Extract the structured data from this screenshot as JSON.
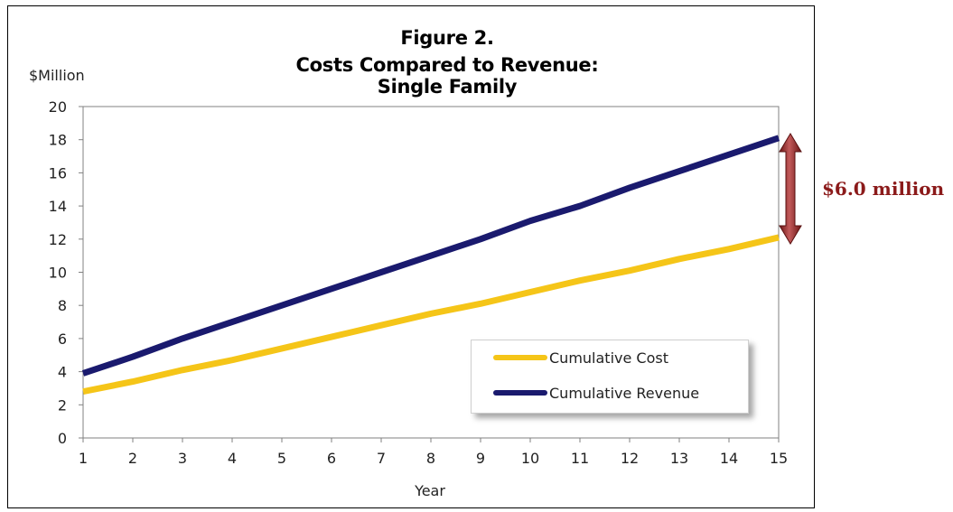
{
  "chart_data": {
    "type": "line",
    "title": "Figure 2.",
    "subtitle": "Costs Compared to Revenue: Single Family",
    "xlabel": "Year",
    "ylabel": "$Million",
    "x": [
      1,
      2,
      3,
      4,
      5,
      6,
      7,
      8,
      9,
      10,
      11,
      12,
      13,
      14,
      15
    ],
    "xlim": [
      1,
      15
    ],
    "ylim": [
      0,
      20
    ],
    "yticks": [
      0,
      2,
      4,
      6,
      8,
      10,
      12,
      14,
      16,
      18,
      20
    ],
    "series": [
      {
        "name": "Cumulative Cost",
        "color": "#f5c518",
        "values": [
          2.8,
          3.4,
          4.1,
          4.7,
          5.4,
          6.1,
          6.8,
          7.5,
          8.1,
          8.8,
          9.5,
          10.1,
          10.8,
          11.4,
          12.1
        ]
      },
      {
        "name": "Cumulative Revenue",
        "color": "#1a1a6e",
        "values": [
          3.9,
          4.9,
          6.0,
          7.0,
          8.0,
          9.0,
          10.0,
          11.0,
          12.0,
          13.1,
          14.0,
          15.1,
          16.1,
          17.1,
          18.1
        ]
      }
    ],
    "annotation": {
      "text": "$6.0 million",
      "color": "#8b1a1a"
    },
    "grid": false,
    "legend_position": "bottom-right"
  }
}
